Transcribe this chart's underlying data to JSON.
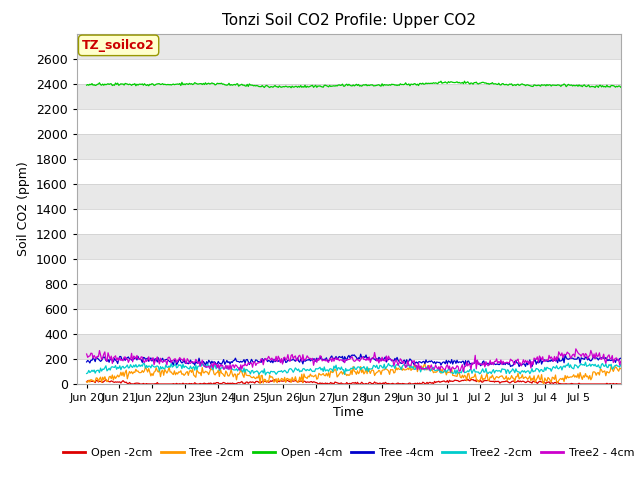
{
  "title": "Tonzi Soil CO2 Profile: Upper CO2",
  "ylabel": "Soil CO2 (ppm)",
  "xlabel": "Time",
  "annotation_text": "TZ_soilco2",
  "annotation_bg": "#ffffcc",
  "annotation_border": "#999900",
  "annotation_text_color": "#cc0000",
  "ylim": [
    0,
    2800
  ],
  "yticks": [
    0,
    200,
    400,
    600,
    800,
    1000,
    1200,
    1400,
    1600,
    1800,
    2000,
    2200,
    2400,
    2600
  ],
  "bg_color": "#e8e8e8",
  "bg_color_alt": "#d8d8d8",
  "grid_color": "#ffffff",
  "series": {
    "Open -2cm": {
      "color": "#dd0000",
      "base": 10,
      "amp": 12,
      "noise": 5,
      "freq": 1.2
    },
    "Tree -2cm": {
      "color": "#ff9900",
      "base": 75,
      "amp": 35,
      "noise": 18,
      "freq": 1.1
    },
    "Open -4cm": {
      "color": "#00cc00",
      "base": 2390,
      "amp": 12,
      "noise": 5,
      "freq": 0.9
    },
    "Tree -4cm": {
      "color": "#0000cc",
      "base": 185,
      "amp": 18,
      "noise": 12,
      "freq": 1.0
    },
    "Tree2 -2cm": {
      "color": "#00cccc",
      "base": 120,
      "amp": 22,
      "noise": 12,
      "freq": 1.15
    },
    "Tree2 - 4cm": {
      "color": "#cc00cc",
      "base": 180,
      "amp": 35,
      "noise": 18,
      "freq": 1.05
    }
  },
  "n_points": 500,
  "x_start": 19.0,
  "x_end": 35.3,
  "xtick_positions": [
    19,
    20,
    21,
    22,
    23,
    24,
    25,
    26,
    27,
    28,
    29,
    30,
    31,
    32,
    33,
    34,
    35
  ],
  "xtick_labels": [
    "Jun 20",
    "Jun 21",
    "Jun 22",
    "Jun 23",
    "Jun 24",
    "Jun 25",
    "Jun 26",
    "Jun 27",
    "Jun 28",
    "Jun 29",
    "Jun 30",
    "Jul 1",
    "Jul 2",
    "Jul 3",
    "Jul 4",
    "Jul 5",
    ""
  ],
  "legend_order": [
    "Open -2cm",
    "Tree -2cm",
    "Open -4cm",
    "Tree -4cm",
    "Tree2 -2cm",
    "Tree2 - 4cm"
  ]
}
